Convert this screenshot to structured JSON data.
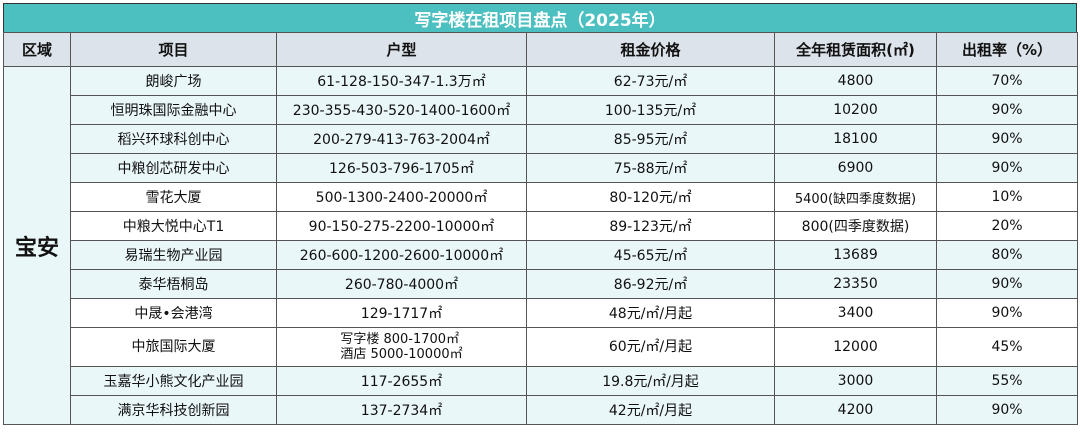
{
  "title": "写字楼在租项目盘点（2025年）",
  "headers": {
    "region": "区域",
    "project": "项目",
    "unit": "户型",
    "rent": "租金价格",
    "area": "全年租赁面积(㎡)",
    "rate": "出租率（%）"
  },
  "region": "宝安",
  "rows": [
    {
      "project": "朗峻广场",
      "unit": "61-128-150-347-1.3万㎡",
      "rent": "62-73元/㎡",
      "area": "4800",
      "rate": "70%"
    },
    {
      "project": "恒明珠国际金融中心",
      "unit": "230-355-430-520-1400-1600㎡",
      "rent": "100-135元/㎡",
      "area": "10200",
      "rate": "90%"
    },
    {
      "project": "稻兴环球科创中心",
      "unit": "200-279-413-763-2004㎡",
      "rent": "85-95元/㎡",
      "area": "18100",
      "rate": "90%"
    },
    {
      "project": "中粮创芯研发中心",
      "unit": "126-503-796-1705㎡",
      "rent": "75-88元/㎡",
      "area": "6900",
      "rate": "90%"
    },
    {
      "project": "雪花大厦",
      "unit": "500-1300-2400-20000㎡",
      "rent": "80-120元/㎡",
      "area": "5400(缺四季度数据)",
      "rate": "10%"
    },
    {
      "project": "中粮大悦中心T1",
      "unit": "90-150-275-2200-10000㎡",
      "rent": "89-123元/㎡",
      "area": "800(四季度数据)",
      "rate": "20%"
    },
    {
      "project": "易瑞生物产业园",
      "unit": "260-600-1200-2600-10000㎡",
      "rent": "45-65元/㎡",
      "area": "13689",
      "rate": "80%"
    },
    {
      "project": "泰华梧桐岛",
      "unit": "260-780-4000㎡",
      "rent": "86-92元/㎡",
      "area": "23350",
      "rate": "90%"
    },
    {
      "project": "中晟•会港湾",
      "unit": "129-1717㎡",
      "rent": "48元/㎡/月起",
      "area": "3400",
      "rate": "90%"
    },
    {
      "project": "中旅国际大厦",
      "unit_line1": "写字楼 800-1700㎡",
      "unit_line2": "酒店 5000-10000㎡",
      "rent": "60元/㎡/月起",
      "area": "12000",
      "rate": "45%"
    },
    {
      "project": "玉嘉华小熊文化产业园",
      "unit": "117-2655㎡",
      "rent": "19.8元/㎡/月起",
      "area": "3000",
      "rate": "55%"
    },
    {
      "project": "满京华科技创新园",
      "unit": "137-2734㎡",
      "rent": "42元/㎡/月起",
      "area": "4200",
      "rate": "90%"
    }
  ]
}
